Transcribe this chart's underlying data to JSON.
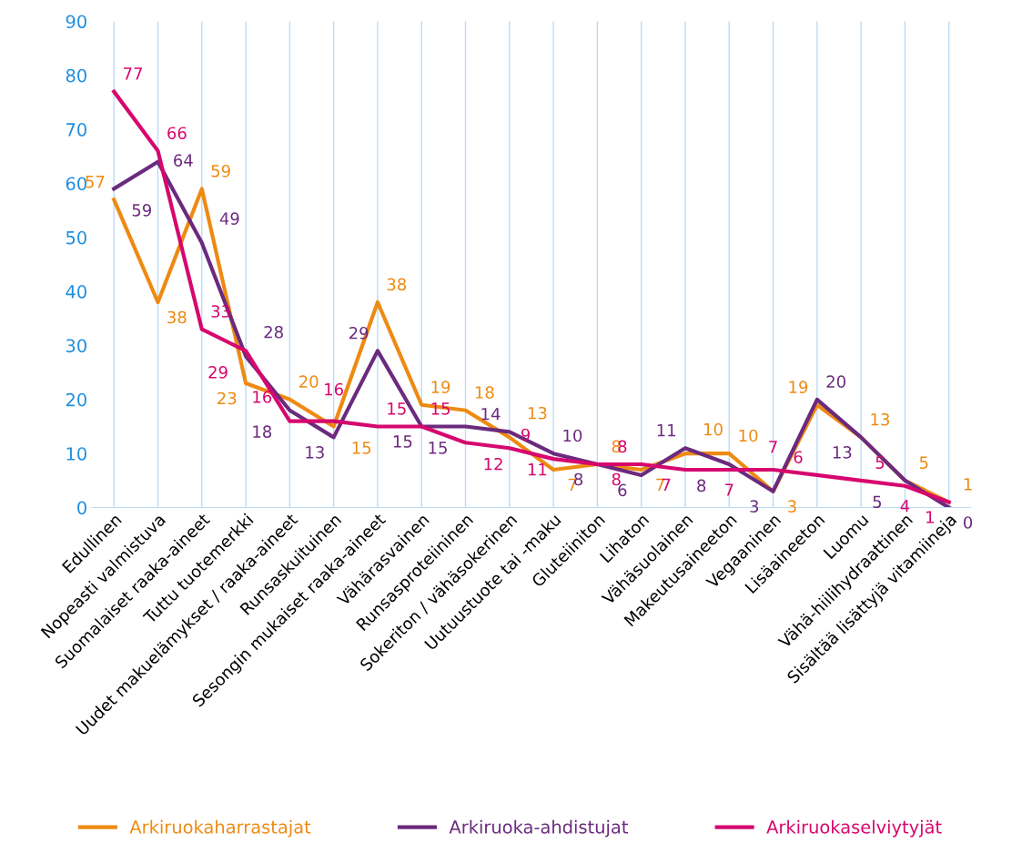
{
  "chart_data": {
    "type": "line",
    "categories": [
      "Edullinen",
      "Nopeasti valmistuva",
      "Suomalaiset raaka-aineet",
      "Tuttu tuotemerkki",
      "Uudet makuelämykset / raaka-aineet",
      "Runsaskuituinen",
      "Sesongin mukaiset raaka-aineet",
      "Vähärasvainen",
      "Runsasproteiininen",
      "Sokeriton / vähäsokerinen",
      "Uutuustuote tai -maku",
      "Gluteiiniton",
      "Lihaton",
      "Vähäsuolainen",
      "Makeutusaineeton",
      "Vegaaninen",
      "Lisäaineeton",
      "Luomu",
      "Vähä-hiilihydraattinen",
      "Sisältää lisättyjä vitamiineja"
    ],
    "series": [
      {
        "name": "Arkiruokaharrastajat",
        "color": "#ee8a12",
        "values": [
          57,
          38,
          59,
          23,
          20,
          15,
          38,
          19,
          18,
          13,
          7,
          8,
          7,
          10,
          10,
          3,
          19,
          13,
          5,
          1
        ]
      },
      {
        "name": "Arkiruoka-ahdistujat",
        "color": "#6b2a7e",
        "values": [
          59,
          64,
          49,
          28,
          18,
          13,
          29,
          15,
          15,
          14,
          10,
          8,
          6,
          11,
          8,
          3,
          20,
          13,
          5,
          0
        ]
      },
      {
        "name": "Arkiruokaselviytyjät",
        "color": "#d6076e",
        "values": [
          77,
          66,
          33,
          29,
          16,
          16,
          15,
          15,
          12,
          11,
          9,
          8,
          8,
          7,
          7,
          7,
          6,
          5,
          4,
          1
        ]
      }
    ],
    "ylim": [
      0,
      90
    ],
    "yticks": [
      0,
      10,
      20,
      30,
      40,
      50,
      60,
      70,
      80,
      90
    ],
    "grid": "x",
    "legend": "bottom",
    "data_labels": true,
    "marker": "none",
    "line_style": "solid"
  }
}
